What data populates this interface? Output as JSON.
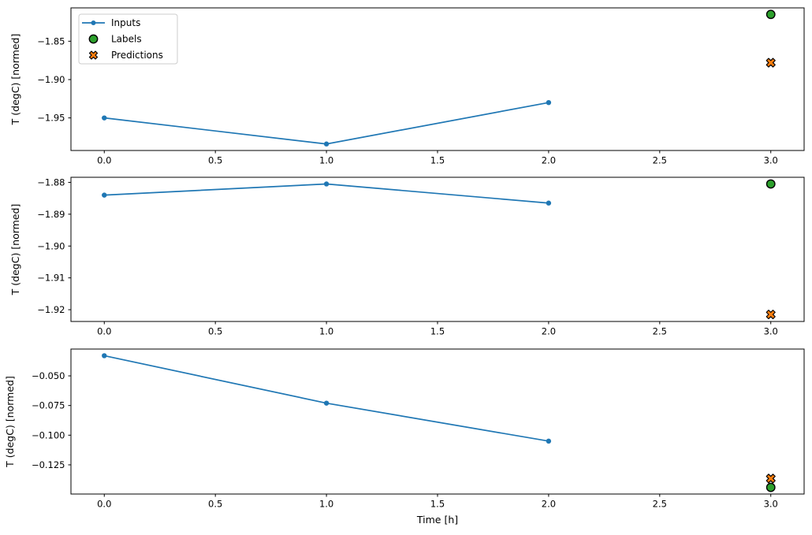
{
  "figure": {
    "background": "#ffffff",
    "xlabel": "Time [h]",
    "ylabel": "T (degC) [normed]",
    "marker_edge_color": "#000000",
    "legend": {
      "position": "upper-left",
      "border_color": "#cccccc",
      "background": "#ffffff",
      "entries": [
        {
          "label": "Inputs",
          "marker": "line-dot",
          "color": "#1f77b4"
        },
        {
          "label": "Labels",
          "marker": "circle",
          "color": "#2ca02c"
        },
        {
          "label": "Predictions",
          "marker": "x",
          "color": "#ff7f0e"
        }
      ]
    }
  },
  "chart_data": [
    {
      "type": "line",
      "title": "",
      "xlabel": "",
      "ylabel": "T (degC) [normed]",
      "grid": false,
      "xlim": [
        -0.15,
        3.15
      ],
      "ylim": [
        -1.9925,
        -1.8065
      ],
      "xticks": [
        0.0,
        0.5,
        1.0,
        1.5,
        2.0,
        2.5,
        3.0
      ],
      "xtick_labels": [
        "0.0",
        "0.5",
        "1.0",
        "1.5",
        "2.0",
        "2.5",
        "3.0"
      ],
      "yticks": [
        -1.85,
        -1.9,
        -1.95
      ],
      "ytick_labels": [
        "−1.85",
        "−1.90",
        "−1.95"
      ],
      "series": [
        {
          "name": "Inputs",
          "type": "line",
          "color": "#1f77b4",
          "x": [
            0,
            1,
            2
          ],
          "y": [
            -1.95,
            -1.984,
            -1.93
          ]
        },
        {
          "name": "Labels",
          "type": "scatter-circle",
          "color": "#2ca02c",
          "x": [
            3
          ],
          "y": [
            -1.815
          ]
        },
        {
          "name": "Predictions",
          "type": "scatter-x",
          "color": "#ff7f0e",
          "x": [
            3
          ],
          "y": [
            -1.878
          ]
        }
      ]
    },
    {
      "type": "line",
      "title": "",
      "xlabel": "",
      "ylabel": "T (degC) [normed]",
      "grid": false,
      "xlim": [
        -0.15,
        3.15
      ],
      "ylim": [
        -1.9237,
        -1.8784
      ],
      "xticks": [
        0.0,
        0.5,
        1.0,
        1.5,
        2.0,
        2.5,
        3.0
      ],
      "xtick_labels": [
        "0.0",
        "0.5",
        "1.0",
        "1.5",
        "2.0",
        "2.5",
        "3.0"
      ],
      "yticks": [
        -1.88,
        -1.89,
        -1.9,
        -1.91,
        -1.92
      ],
      "ytick_labels": [
        "−1.88",
        "−1.89",
        "−1.90",
        "−1.91",
        "−1.92"
      ],
      "series": [
        {
          "name": "Inputs",
          "type": "line",
          "color": "#1f77b4",
          "x": [
            0,
            1,
            2
          ],
          "y": [
            -1.884,
            -1.8805,
            -1.8865
          ]
        },
        {
          "name": "Labels",
          "type": "scatter-circle",
          "color": "#2ca02c",
          "x": [
            3
          ],
          "y": [
            -1.8805
          ]
        },
        {
          "name": "Predictions",
          "type": "scatter-x",
          "color": "#ff7f0e",
          "x": [
            3
          ],
          "y": [
            -1.9215
          ]
        }
      ]
    },
    {
      "type": "line",
      "title": "",
      "xlabel": "Time [h]",
      "ylabel": "T (degC) [normed]",
      "grid": false,
      "xlim": [
        -0.15,
        3.15
      ],
      "ylim": [
        -0.1496,
        -0.0274
      ],
      "xticks": [
        0.0,
        0.5,
        1.0,
        1.5,
        2.0,
        2.5,
        3.0
      ],
      "xtick_labels": [
        "0.0",
        "0.5",
        "1.0",
        "1.5",
        "2.0",
        "2.5",
        "3.0"
      ],
      "yticks": [
        -0.05,
        -0.075,
        -0.1,
        -0.125
      ],
      "ytick_labels": [
        "−0.050",
        "−0.075",
        "−0.100",
        "−0.125"
      ],
      "series": [
        {
          "name": "Inputs",
          "type": "line",
          "color": "#1f77b4",
          "x": [
            0,
            1,
            2
          ],
          "y": [
            -0.033,
            -0.073,
            -0.105
          ]
        },
        {
          "name": "Labels",
          "type": "scatter-circle",
          "color": "#2ca02c",
          "x": [
            3
          ],
          "y": [
            -0.144
          ]
        },
        {
          "name": "Predictions",
          "type": "scatter-x",
          "color": "#ff7f0e",
          "x": [
            3
          ],
          "y": [
            -0.1365
          ]
        }
      ]
    }
  ]
}
